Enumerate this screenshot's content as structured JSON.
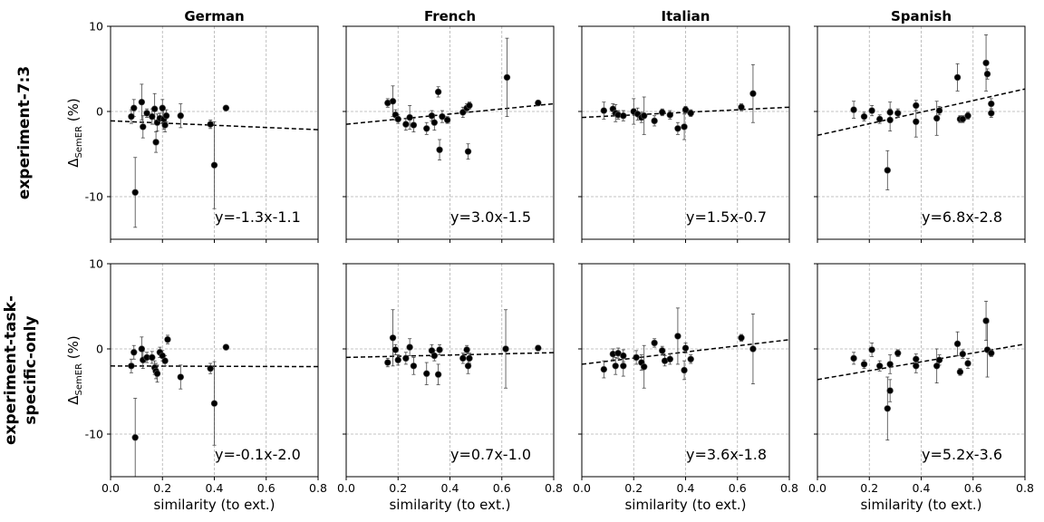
{
  "figure": {
    "row_titles": [
      "experiment-7:3",
      "experiment-task-specific-only"
    ],
    "row_title_lines": [
      [
        "experiment-7:3"
      ],
      [
        "experiment-task-",
        "specific-only"
      ]
    ],
    "column_titles": [
      "German",
      "French",
      "Italian",
      "Spanish"
    ],
    "xlabel": "similarity (to ext.)",
    "ylabel_main": "Δ",
    "ylabel_sub": "SemER",
    "ylabel_unit": " (%)",
    "xlim": [
      0.0,
      0.8
    ],
    "ylim": [
      -15,
      10
    ],
    "xticks": [
      0.0,
      0.2,
      0.4,
      0.6,
      0.8
    ],
    "xtick_labels": [
      "0.0",
      "0.2",
      "0.4",
      "0.6",
      "0.8"
    ],
    "yticks": [
      10,
      0,
      -10
    ],
    "ytick_labels": [
      "10",
      "0",
      "-10"
    ],
    "grid": true,
    "grid_style": "dashed",
    "marker_color": "#000000",
    "line_style": "dashed"
  },
  "chart_data": [
    {
      "type": "scatter",
      "row": 0,
      "col": 0,
      "title": "German",
      "equation": "y=-1.3x-1.1",
      "fit": {
        "slope": -1.3,
        "intercept": -1.1
      },
      "points": [
        {
          "x": 0.08,
          "y": -0.6,
          "err": 0.8
        },
        {
          "x": 0.09,
          "y": 0.4,
          "err": 1.0
        },
        {
          "x": 0.095,
          "y": -9.5,
          "err": 4.1
        },
        {
          "x": 0.12,
          "y": 1.1,
          "err": 2.1
        },
        {
          "x": 0.125,
          "y": -1.8,
          "err": 1.3
        },
        {
          "x": 0.14,
          "y": -0.2,
          "err": 0.5
        },
        {
          "x": 0.16,
          "y": -0.6,
          "err": 0.9
        },
        {
          "x": 0.17,
          "y": 0.3,
          "err": 1.8
        },
        {
          "x": 0.175,
          "y": -3.6,
          "err": 1.2
        },
        {
          "x": 0.18,
          "y": -1.3,
          "err": 1.0
        },
        {
          "x": 0.19,
          "y": -0.8,
          "err": 0.6
        },
        {
          "x": 0.2,
          "y": 0.4,
          "err": 1.0
        },
        {
          "x": 0.205,
          "y": -0.9,
          "err": 1.2
        },
        {
          "x": 0.21,
          "y": -1.6,
          "err": 0.8
        },
        {
          "x": 0.215,
          "y": -0.5,
          "err": 0.7
        },
        {
          "x": 0.27,
          "y": -0.5,
          "err": 1.4
        },
        {
          "x": 0.385,
          "y": -1.5,
          "err": 0.5
        },
        {
          "x": 0.4,
          "y": -6.3,
          "err": 5.1
        },
        {
          "x": 0.445,
          "y": 0.4,
          "err": 0.3
        }
      ]
    },
    {
      "type": "scatter",
      "row": 0,
      "col": 1,
      "title": "French",
      "equation": "y=3.0x-1.5",
      "fit": {
        "slope": 3.0,
        "intercept": -1.5
      },
      "points": [
        {
          "x": 0.16,
          "y": 1.0,
          "err": 0.5
        },
        {
          "x": 0.18,
          "y": 1.2,
          "err": 1.8
        },
        {
          "x": 0.19,
          "y": -0.4,
          "err": 0.6
        },
        {
          "x": 0.2,
          "y": -0.9,
          "err": 0.5
        },
        {
          "x": 0.23,
          "y": -1.5,
          "err": 0.7
        },
        {
          "x": 0.245,
          "y": -0.7,
          "err": 1.4
        },
        {
          "x": 0.26,
          "y": -1.6,
          "err": 0.8
        },
        {
          "x": 0.31,
          "y": -2.0,
          "err": 0.7
        },
        {
          "x": 0.33,
          "y": -0.5,
          "err": 0.6
        },
        {
          "x": 0.34,
          "y": -1.3,
          "err": 0.9
        },
        {
          "x": 0.355,
          "y": 2.3,
          "err": 0.6
        },
        {
          "x": 0.36,
          "y": -4.5,
          "err": 1.2
        },
        {
          "x": 0.37,
          "y": -0.6,
          "err": 0.7
        },
        {
          "x": 0.39,
          "y": -1.0,
          "err": 0.4
        },
        {
          "x": 0.45,
          "y": -0.1,
          "err": 0.6
        },
        {
          "x": 0.465,
          "y": 0.4,
          "err": 0.5
        },
        {
          "x": 0.47,
          "y": -4.7,
          "err": 0.9
        },
        {
          "x": 0.475,
          "y": 0.7,
          "err": 0.4
        },
        {
          "x": 0.62,
          "y": 4.0,
          "err": 4.6
        },
        {
          "x": 0.74,
          "y": 1.0,
          "err": 0.3
        }
      ]
    },
    {
      "type": "scatter",
      "row": 0,
      "col": 2,
      "title": "Italian",
      "equation": "y=1.5x-0.7",
      "fit": {
        "slope": 1.5,
        "intercept": -0.7
      },
      "points": [
        {
          "x": 0.085,
          "y": 0.1,
          "err": 1.0
        },
        {
          "x": 0.12,
          "y": 0.3,
          "err": 0.6
        },
        {
          "x": 0.13,
          "y": -0.2,
          "err": 1.0
        },
        {
          "x": 0.14,
          "y": -0.4,
          "err": 0.5
        },
        {
          "x": 0.16,
          "y": -0.5,
          "err": 0.6
        },
        {
          "x": 0.2,
          "y": 0.0,
          "err": 1.5
        },
        {
          "x": 0.215,
          "y": -0.3,
          "err": 0.7
        },
        {
          "x": 0.23,
          "y": -0.7,
          "err": 0.6
        },
        {
          "x": 0.24,
          "y": -0.5,
          "err": 2.2
        },
        {
          "x": 0.28,
          "y": -1.1,
          "err": 0.6
        },
        {
          "x": 0.31,
          "y": -0.1,
          "err": 0.4
        },
        {
          "x": 0.34,
          "y": -0.4,
          "err": 0.5
        },
        {
          "x": 0.37,
          "y": -2.0,
          "err": 0.7
        },
        {
          "x": 0.395,
          "y": -1.8,
          "err": 1.5
        },
        {
          "x": 0.4,
          "y": 0.2,
          "err": 0.4
        },
        {
          "x": 0.42,
          "y": -0.2,
          "err": 0.4
        },
        {
          "x": 0.615,
          "y": 0.5,
          "err": 0.4
        },
        {
          "x": 0.66,
          "y": 2.1,
          "err": 3.4
        }
      ]
    },
    {
      "type": "scatter",
      "row": 0,
      "col": 3,
      "title": "Spanish",
      "equation": "y=6.8x-2.8",
      "fit": {
        "slope": 6.8,
        "intercept": -2.8
      },
      "points": [
        {
          "x": 0.14,
          "y": 0.2,
          "err": 1.0
        },
        {
          "x": 0.18,
          "y": -0.6,
          "err": 0.5
        },
        {
          "x": 0.21,
          "y": 0.1,
          "err": 0.6
        },
        {
          "x": 0.24,
          "y": -0.9,
          "err": 0.5
        },
        {
          "x": 0.27,
          "y": -6.9,
          "err": 2.3
        },
        {
          "x": 0.28,
          "y": -1.0,
          "err": 1.3
        },
        {
          "x": 0.28,
          "y": -0.1,
          "err": 1.2
        },
        {
          "x": 0.31,
          "y": -0.2,
          "err": 0.5
        },
        {
          "x": 0.38,
          "y": 0.7,
          "err": 0.6
        },
        {
          "x": 0.38,
          "y": -1.2,
          "err": 1.8
        },
        {
          "x": 0.46,
          "y": -0.8,
          "err": 2.0
        },
        {
          "x": 0.47,
          "y": 0.1,
          "err": 0.5
        },
        {
          "x": 0.54,
          "y": 4.0,
          "err": 1.6
        },
        {
          "x": 0.55,
          "y": -0.9,
          "err": 0.4
        },
        {
          "x": 0.56,
          "y": -0.9,
          "err": 0.4
        },
        {
          "x": 0.58,
          "y": -0.5,
          "err": 0.4
        },
        {
          "x": 0.65,
          "y": 5.7,
          "err": 3.3
        },
        {
          "x": 0.655,
          "y": 4.4,
          "err": 0.6
        },
        {
          "x": 0.67,
          "y": 0.9,
          "err": 0.6
        },
        {
          "x": 0.67,
          "y": -0.2,
          "err": 0.5
        }
      ]
    },
    {
      "type": "scatter",
      "row": 1,
      "col": 0,
      "title": "German",
      "equation": "y=-0.1x-2.0",
      "fit": {
        "slope": -0.1,
        "intercept": -2.0
      },
      "points": [
        {
          "x": 0.08,
          "y": -2.0,
          "err": 0.8
        },
        {
          "x": 0.09,
          "y": -0.4,
          "err": 0.8
        },
        {
          "x": 0.095,
          "y": -10.4,
          "err": 4.6
        },
        {
          "x": 0.12,
          "y": 0.0,
          "err": 1.4
        },
        {
          "x": 0.125,
          "y": -1.3,
          "err": 1.0
        },
        {
          "x": 0.14,
          "y": -1.0,
          "err": 0.6
        },
        {
          "x": 0.16,
          "y": -1.0,
          "err": 0.7
        },
        {
          "x": 0.17,
          "y": -2.2,
          "err": 0.8
        },
        {
          "x": 0.175,
          "y": -2.6,
          "err": 0.9
        },
        {
          "x": 0.18,
          "y": -2.9,
          "err": 1.0
        },
        {
          "x": 0.19,
          "y": -0.4,
          "err": 0.6
        },
        {
          "x": 0.2,
          "y": -0.8,
          "err": 0.6
        },
        {
          "x": 0.21,
          "y": -1.4,
          "err": 0.6
        },
        {
          "x": 0.22,
          "y": 1.1,
          "err": 0.5
        },
        {
          "x": 0.27,
          "y": -3.3,
          "err": 1.4
        },
        {
          "x": 0.385,
          "y": -2.3,
          "err": 0.6
        },
        {
          "x": 0.4,
          "y": -6.4,
          "err": 4.9
        },
        {
          "x": 0.445,
          "y": 0.2,
          "err": 0.3
        }
      ]
    },
    {
      "type": "scatter",
      "row": 1,
      "col": 1,
      "title": "French",
      "equation": "y=0.7x-1.0",
      "fit": {
        "slope": 0.7,
        "intercept": -1.0
      },
      "points": [
        {
          "x": 0.16,
          "y": -1.6,
          "err": 0.5
        },
        {
          "x": 0.18,
          "y": 1.3,
          "err": 3.3
        },
        {
          "x": 0.19,
          "y": -0.1,
          "err": 0.6
        },
        {
          "x": 0.2,
          "y": -1.3,
          "err": 0.6
        },
        {
          "x": 0.23,
          "y": -1.1,
          "err": 0.7
        },
        {
          "x": 0.245,
          "y": 0.2,
          "err": 1.0
        },
        {
          "x": 0.26,
          "y": -2.0,
          "err": 1.0
        },
        {
          "x": 0.31,
          "y": -2.9,
          "err": 1.3
        },
        {
          "x": 0.33,
          "y": -0.2,
          "err": 0.7
        },
        {
          "x": 0.34,
          "y": -0.8,
          "err": 0.6
        },
        {
          "x": 0.355,
          "y": -3.0,
          "err": 1.2
        },
        {
          "x": 0.36,
          "y": -0.1,
          "err": 0.6
        },
        {
          "x": 0.45,
          "y": -1.1,
          "err": 0.6
        },
        {
          "x": 0.465,
          "y": -0.1,
          "err": 0.5
        },
        {
          "x": 0.47,
          "y": -2.0,
          "err": 0.9
        },
        {
          "x": 0.475,
          "y": -1.1,
          "err": 0.6
        },
        {
          "x": 0.615,
          "y": 0.0,
          "err": 4.6
        },
        {
          "x": 0.74,
          "y": 0.1,
          "err": 0.3
        }
      ]
    },
    {
      "type": "scatter",
      "row": 1,
      "col": 2,
      "title": "Italian",
      "equation": "y=3.6x-1.8",
      "fit": {
        "slope": 3.6,
        "intercept": -1.8
      },
      "points": [
        {
          "x": 0.085,
          "y": -2.4,
          "err": 1.0
        },
        {
          "x": 0.12,
          "y": -0.6,
          "err": 0.6
        },
        {
          "x": 0.13,
          "y": -2.0,
          "err": 1.0
        },
        {
          "x": 0.14,
          "y": -0.5,
          "err": 0.6
        },
        {
          "x": 0.16,
          "y": -0.8,
          "err": 0.7
        },
        {
          "x": 0.16,
          "y": -2.0,
          "err": 1.2
        },
        {
          "x": 0.21,
          "y": -1.0,
          "err": 0.8
        },
        {
          "x": 0.23,
          "y": -1.6,
          "err": 0.9
        },
        {
          "x": 0.24,
          "y": -2.1,
          "err": 2.5
        },
        {
          "x": 0.28,
          "y": 0.7,
          "err": 0.5
        },
        {
          "x": 0.31,
          "y": -0.2,
          "err": 0.5
        },
        {
          "x": 0.32,
          "y": -1.4,
          "err": 0.6
        },
        {
          "x": 0.34,
          "y": -1.2,
          "err": 0.6
        },
        {
          "x": 0.37,
          "y": 1.5,
          "err": 3.3
        },
        {
          "x": 0.395,
          "y": -2.5,
          "err": 1.1
        },
        {
          "x": 0.4,
          "y": 0.1,
          "err": 0.6
        },
        {
          "x": 0.42,
          "y": -1.2,
          "err": 0.5
        },
        {
          "x": 0.615,
          "y": 1.3,
          "err": 0.4
        },
        {
          "x": 0.66,
          "y": 0.0,
          "err": 4.1
        }
      ]
    },
    {
      "type": "scatter",
      "row": 1,
      "col": 3,
      "title": "Spanish",
      "equation": "y=5.2x-3.6",
      "fit": {
        "slope": 5.2,
        "intercept": -3.6
      },
      "points": [
        {
          "x": 0.14,
          "y": -1.1,
          "err": 0.7
        },
        {
          "x": 0.18,
          "y": -1.8,
          "err": 0.5
        },
        {
          "x": 0.21,
          "y": -0.1,
          "err": 0.8
        },
        {
          "x": 0.24,
          "y": -2.0,
          "err": 0.6
        },
        {
          "x": 0.27,
          "y": -7.0,
          "err": 3.7
        },
        {
          "x": 0.28,
          "y": -4.9,
          "err": 1.3
        },
        {
          "x": 0.28,
          "y": -1.8,
          "err": 1.1
        },
        {
          "x": 0.31,
          "y": -0.5,
          "err": 0.4
        },
        {
          "x": 0.38,
          "y": -1.2,
          "err": 0.6
        },
        {
          "x": 0.38,
          "y": -2.0,
          "err": 0.8
        },
        {
          "x": 0.46,
          "y": -2.0,
          "err": 2.0
        },
        {
          "x": 0.47,
          "y": -1.3,
          "err": 0.6
        },
        {
          "x": 0.54,
          "y": 0.6,
          "err": 1.4
        },
        {
          "x": 0.55,
          "y": -2.7,
          "err": 0.4
        },
        {
          "x": 0.56,
          "y": -0.6,
          "err": 0.5
        },
        {
          "x": 0.58,
          "y": -1.7,
          "err": 0.6
        },
        {
          "x": 0.65,
          "y": 3.3,
          "err": 2.3
        },
        {
          "x": 0.655,
          "y": -0.1,
          "err": 3.2
        },
        {
          "x": 0.67,
          "y": -0.5,
          "err": 0.4
        }
      ]
    }
  ]
}
